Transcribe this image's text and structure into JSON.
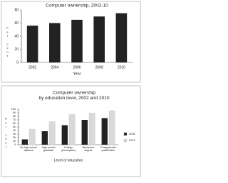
{
  "chart_data": [
    {
      "type": "bar",
      "title": [
        "Computer ownership, 2002-10"
      ],
      "ylabel": "Per cent",
      "xlabel": "Year",
      "categories": [
        "2002",
        "2004",
        "2006",
        "2008",
        "2010"
      ],
      "series": [
        {
          "color": "#222222",
          "values": [
            56,
            60,
            65,
            70,
            75
          ]
        }
      ],
      "ylim": [
        0,
        80
      ],
      "yticks": [
        0,
        20,
        40,
        60,
        80
      ],
      "grid": false
    },
    {
      "type": "bar",
      "title": [
        "Computer ownership",
        "by education level, 2002 and 2010"
      ],
      "ylabel": "Per cent",
      "xlabel": "Level of education",
      "categories": [
        "No high school diploma",
        "High school graduate",
        "College (incomplete)",
        "Bachelor's degree",
        "Postgraduate qualification"
      ],
      "series": [
        {
          "name": "2002",
          "color": "#222222",
          "values": [
            15,
            38,
            55,
            70,
            75
          ]
        },
        {
          "name": "2010",
          "color": "#d9d9d9",
          "values": [
            44,
            65,
            85,
            89,
            96
          ]
        }
      ],
      "ylim": [
        0,
        100
      ],
      "yticks": [
        0,
        10,
        20,
        30,
        40,
        50,
        60,
        70,
        80,
        90,
        100
      ],
      "grid": false,
      "legend": "right"
    }
  ]
}
